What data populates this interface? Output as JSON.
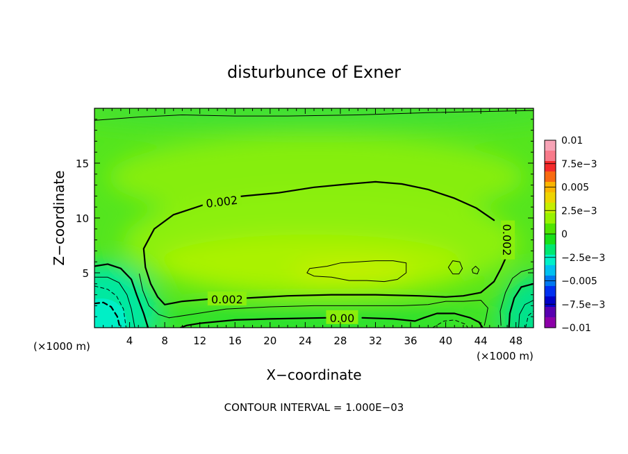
{
  "chart_data": {
    "type": "heatmap",
    "title": "disturbunce of Exner",
    "xlabel": "X−coordinate",
    "ylabel": "Z−coordinate",
    "x_unit_left": "(×1000 m)",
    "x_unit_right": "(×1000 m)",
    "xlim": [
      0,
      50
    ],
    "ylim": [
      0,
      20
    ],
    "x_ticks": [
      4,
      8,
      12,
      16,
      20,
      24,
      28,
      32,
      36,
      40,
      44,
      48
    ],
    "y_ticks": [
      5,
      10,
      15
    ],
    "footer": "CONTOUR INTERVAL = 1.000E−03",
    "colorbar": {
      "labels": [
        {
          "value": 0.01,
          "text": "0.01"
        },
        {
          "value": 0.0075,
          "text": "7.5e−3"
        },
        {
          "value": 0.005,
          "text": "0.005"
        },
        {
          "value": 0.0025,
          "text": "2.5e−3"
        },
        {
          "value": 0,
          "text": "0"
        },
        {
          "value": -0.0025,
          "text": "−2.5e−3"
        },
        {
          "value": -0.005,
          "text": "−0.005"
        },
        {
          "value": -0.0075,
          "text": "−7.5e−3"
        },
        {
          "value": -0.01,
          "text": "−0.01"
        }
      ],
      "colors": [
        "#f7a3b6",
        "#f87a8a",
        "#f42a2a",
        "#f86a10",
        "#fab400",
        "#eed400",
        "#c6ee00",
        "#98f200",
        "#50e400",
        "#18e018",
        "#00e870",
        "#00f0c8",
        "#00c0f0",
        "#0078f0",
        "#0030f0",
        "#0000c8",
        "#5800b0",
        "#8c00a8"
      ]
    },
    "contour_labels": [
      {
        "text": "0.002",
        "x": 14.5,
        "z": 11.5,
        "angle": -7
      },
      {
        "text": "0.002",
        "x": 15.1,
        "z": 2.6,
        "angle": 0
      },
      {
        "text": "0.00",
        "x": 28.2,
        "z": 0.9,
        "angle": 0
      },
      {
        "text": "0.002",
        "x": 47,
        "z": 8,
        "angle": 90
      }
    ],
    "contours": [
      {
        "level": 0.002,
        "style": "thick",
        "points": [
          [
            12.8,
            11.3
          ],
          [
            14.8,
            11.8
          ],
          [
            17,
            12
          ],
          [
            21,
            12.3
          ],
          [
            25,
            12.8
          ],
          [
            29,
            13.1
          ],
          [
            32,
            13.3
          ],
          [
            35,
            13.1
          ],
          [
            38,
            12.6
          ],
          [
            41,
            11.8
          ],
          [
            43.5,
            10.9
          ],
          [
            45.5,
            9.8
          ]
        ]
      },
      {
        "level": 0.002,
        "style": "thick",
        "points": [
          [
            12.8,
            11.3
          ],
          [
            9,
            10.3
          ],
          [
            6.8,
            9.0
          ],
          [
            5.6,
            7.2
          ],
          [
            5.8,
            5.5
          ],
          [
            6.4,
            4.0
          ],
          [
            7.2,
            2.8
          ],
          [
            8,
            2.1
          ],
          [
            10,
            2.4
          ],
          [
            13,
            2.6
          ]
        ]
      },
      {
        "level": 0.002,
        "style": "thick",
        "points": [
          [
            17.4,
            2.7
          ],
          [
            22,
            2.9
          ],
          [
            27,
            3.0
          ],
          [
            32,
            3.0
          ],
          [
            37,
            2.9
          ],
          [
            40,
            2.8
          ],
          [
            42,
            2.9
          ],
          [
            44,
            3.2
          ],
          [
            45.5,
            4.2
          ],
          [
            46.3,
            5.4
          ],
          [
            46.8,
            6.3
          ]
        ]
      },
      {
        "level": 0.001,
        "style": "thin",
        "points": [
          [
            8.5,
            0.9
          ],
          [
            11,
            1.2
          ],
          [
            15,
            1.7
          ],
          [
            20,
            1.9
          ],
          [
            25,
            2.0
          ],
          [
            30,
            2.0
          ],
          [
            35,
            2.0
          ],
          [
            38,
            2.1
          ],
          [
            40,
            2.4
          ],
          [
            42,
            2.4
          ],
          [
            44,
            2.5
          ],
          [
            44.8,
            1.8
          ],
          [
            44.6,
            0.9
          ],
          [
            44.4,
            0.2
          ]
        ]
      },
      {
        "level": 0.001,
        "style": "thin",
        "points": [
          [
            5.1,
            4.9
          ],
          [
            5.5,
            3.4
          ],
          [
            6.2,
            2.0
          ],
          [
            7.3,
            1.2
          ],
          [
            8.5,
            0.9
          ]
        ]
      },
      {
        "level": 0.001,
        "style": "thin",
        "points": [
          [
            46.3,
            0.2
          ],
          [
            46.2,
            1.5
          ],
          [
            46.8,
            3.2
          ],
          [
            47.6,
            4.5
          ],
          [
            48.6,
            5.1
          ],
          [
            50,
            5.4
          ]
        ]
      },
      {
        "level": 0.0,
        "style": "thick",
        "points": [
          [
            9.8,
            0
          ],
          [
            10.5,
            0.2
          ],
          [
            12,
            0.4
          ],
          [
            16,
            0.7
          ],
          [
            20,
            0.8
          ],
          [
            26.4,
            0.9
          ]
        ]
      },
      {
        "level": 0.0,
        "style": "thick",
        "points": [
          [
            30.5,
            0.9
          ],
          [
            34,
            0.8
          ],
          [
            36.5,
            0.6
          ],
          [
            37.5,
            0.9
          ],
          [
            39,
            1.3
          ],
          [
            41,
            1.3
          ],
          [
            42.8,
            0.9
          ],
          [
            43.8,
            0.5
          ],
          [
            44.2,
            0
          ]
        ]
      },
      {
        "level": 0.0,
        "style": "thick",
        "points": [
          [
            0,
            5.6
          ],
          [
            1.5,
            5.8
          ],
          [
            3,
            5.4
          ],
          [
            4.2,
            4.4
          ],
          [
            4.8,
            3.0
          ],
          [
            5.6,
            1.3
          ],
          [
            6.1,
            0
          ]
        ]
      },
      {
        "level": 0.0,
        "style": "thick",
        "points": [
          [
            47.2,
            0
          ],
          [
            47.3,
            1.3
          ],
          [
            47.8,
            2.7
          ],
          [
            48.6,
            3.7
          ],
          [
            50,
            4.0
          ]
        ]
      },
      {
        "level": -0.001,
        "style": "thin",
        "points": [
          [
            0,
            4.6
          ],
          [
            1.5,
            4.6
          ],
          [
            2.8,
            4.1
          ],
          [
            3.7,
            3.0
          ],
          [
            4.2,
            1.7
          ],
          [
            4.6,
            0
          ]
        ]
      },
      {
        "level": -0.001,
        "style": "thin",
        "points": [
          [
            48.3,
            0
          ],
          [
            48.4,
            1.2
          ],
          [
            49,
            2.1
          ],
          [
            50,
            2.5
          ]
        ]
      },
      {
        "level": -0.002,
        "style": "dashed",
        "points": [
          [
            0,
            3.8
          ],
          [
            1.5,
            3.5
          ],
          [
            2.5,
            2.9
          ],
          [
            3.3,
            1.7
          ],
          [
            3.6,
            0
          ]
        ]
      },
      {
        "level": -0.002,
        "style": "dashed",
        "points": [
          [
            38.5,
            0
          ],
          [
            39.8,
            0.6
          ],
          [
            41,
            0.7
          ],
          [
            42.3,
            0.3
          ],
          [
            42.5,
            0
          ]
        ]
      },
      {
        "level": -0.002,
        "style": "dashed",
        "points": [
          [
            49.1,
            0
          ],
          [
            49.4,
            1.1
          ],
          [
            50,
            1.5
          ]
        ]
      },
      {
        "level": -0.003,
        "style": "thickdash",
        "points": [
          [
            0,
            2.2
          ],
          [
            1,
            2.3
          ],
          [
            1.9,
            1.9
          ],
          [
            2.6,
            1.0
          ],
          [
            2.9,
            0
          ]
        ]
      },
      {
        "level": 0.003,
        "style": "thin",
        "closed": true,
        "points": [
          [
            24.5,
            5.4
          ],
          [
            26.5,
            5.6
          ],
          [
            28,
            5.9
          ],
          [
            30,
            6.0
          ],
          [
            32,
            6.1
          ],
          [
            34,
            6.1
          ],
          [
            35.5,
            5.9
          ],
          [
            35.5,
            5.0
          ],
          [
            34.5,
            4.4
          ],
          [
            33,
            4.2
          ],
          [
            31,
            4.3
          ],
          [
            29,
            4.3
          ],
          [
            27,
            4.6
          ],
          [
            25,
            4.7
          ],
          [
            24.2,
            5.0
          ]
        ]
      },
      {
        "level": 0.003,
        "style": "thin",
        "closed": true,
        "points": [
          [
            40.3,
            5.5
          ],
          [
            40.8,
            6.1
          ],
          [
            41.6,
            6.0
          ],
          [
            41.9,
            5.4
          ],
          [
            41.5,
            4.9
          ],
          [
            40.8,
            4.9
          ]
        ]
      },
      {
        "level": 0.003,
        "style": "thin",
        "closed": true,
        "points": [
          [
            43,
            5.3
          ],
          [
            43.4,
            5.6
          ],
          [
            43.8,
            5.3
          ],
          [
            43.6,
            4.9
          ],
          [
            43.1,
            5.0
          ]
        ]
      },
      {
        "level": 0.001,
        "style": "thin",
        "points": [
          [
            0,
            18.9
          ],
          [
            5,
            19.2
          ],
          [
            10,
            19.4
          ],
          [
            16,
            19.3
          ],
          [
            22,
            19.3
          ],
          [
            30,
            19.4
          ],
          [
            38,
            19.6
          ],
          [
            44,
            19.7
          ],
          [
            50,
            19.8
          ]
        ]
      }
    ]
  }
}
